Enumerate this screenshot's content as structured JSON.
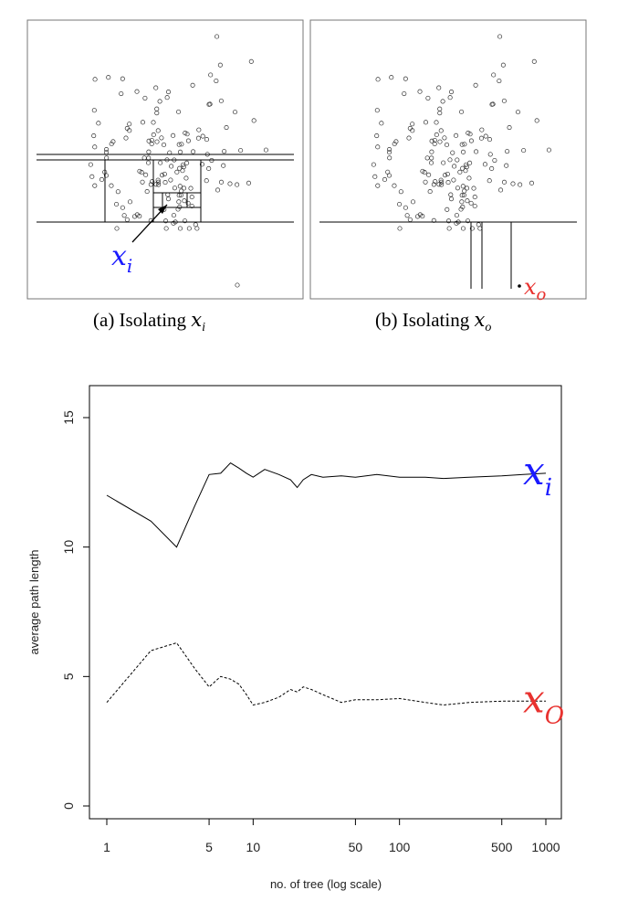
{
  "captions": {
    "a": {
      "prefix": "(a) Isolating ",
      "var": "x",
      "sub": "i"
    },
    "b": {
      "prefix": "(b) Isolating ",
      "var": "x",
      "sub": "o"
    }
  },
  "scatter_labels": {
    "xi": {
      "var": "x",
      "sub": "i",
      "color": "#1a1aff"
    },
    "xo": {
      "var": "x",
      "sub": "o",
      "color": "#e8322f"
    }
  },
  "chart_data": {
    "type": "line",
    "xscale": "log",
    "xlabel": "no. of tree (log scale)",
    "ylabel": "average path length",
    "xlim": [
      1,
      1000
    ],
    "ylim": [
      0,
      15
    ],
    "xticks": [
      1,
      5,
      10,
      50,
      100,
      500,
      1000
    ],
    "xtick_labels": [
      "1",
      "5",
      "10",
      "50",
      "100",
      "500",
      "1000"
    ],
    "yticks": [
      0,
      5,
      10,
      15
    ],
    "ytick_labels": [
      "0",
      "5",
      "10",
      "15"
    ],
    "series": [
      {
        "label_var": "x",
        "label_sub": "i",
        "label_color": "#1a1aff",
        "line_style": "solid",
        "x": [
          1,
          2,
          3,
          4,
          5,
          6,
          7,
          8,
          9,
          10,
          12,
          15,
          18,
          20,
          22,
          25,
          30,
          40,
          50,
          70,
          100,
          150,
          200,
          300,
          500,
          700,
          1000
        ],
        "y": [
          12.0,
          11.0,
          10.0,
          11.6,
          12.8,
          12.85,
          13.25,
          13.05,
          12.85,
          12.7,
          13.0,
          12.8,
          12.6,
          12.3,
          12.6,
          12.8,
          12.7,
          12.75,
          12.7,
          12.8,
          12.7,
          12.7,
          12.65,
          12.7,
          12.75,
          12.8,
          12.85
        ]
      },
      {
        "label_var": "x",
        "label_sub": "O",
        "label_color": "#e8322f",
        "line_style": "dashed",
        "x": [
          1,
          2,
          3,
          4,
          5,
          6,
          7,
          8,
          9,
          10,
          12,
          15,
          18,
          20,
          22,
          25,
          30,
          40,
          50,
          70,
          100,
          150,
          200,
          300,
          500,
          700,
          1000
        ],
        "y": [
          4.0,
          6.0,
          6.3,
          5.3,
          4.6,
          5.0,
          4.9,
          4.7,
          4.3,
          3.9,
          4.0,
          4.2,
          4.5,
          4.4,
          4.6,
          4.5,
          4.3,
          4.0,
          4.1,
          4.1,
          4.15,
          4.0,
          3.9,
          4.0,
          4.05,
          4.05,
          4.05
        ]
      }
    ]
  }
}
